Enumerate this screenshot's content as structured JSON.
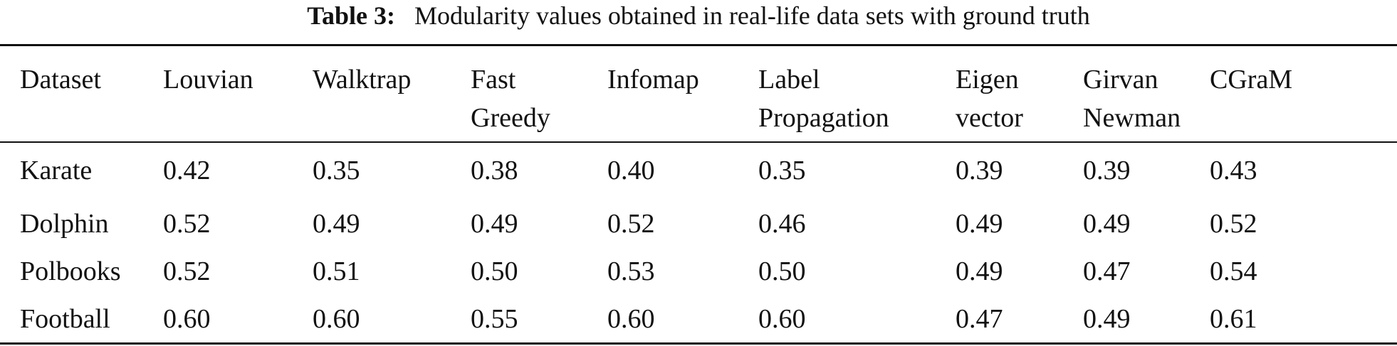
{
  "caption": {
    "label": "Table 3:",
    "text": "Modularity values obtained in real-life data sets with ground truth"
  },
  "table": {
    "columns": [
      [
        "Dataset"
      ],
      [
        "Louvian"
      ],
      [
        "Walktrap"
      ],
      [
        "Fast",
        "Greedy"
      ],
      [
        "Infomap"
      ],
      [
        "Label",
        "Propagation"
      ],
      [
        "Eigen",
        "vector"
      ],
      [
        "Girvan",
        "Newman"
      ],
      [
        "CGraM"
      ]
    ],
    "rows": [
      [
        "Karate",
        "0.42",
        "0.35",
        "0.38",
        "0.40",
        "0.35",
        "0.39",
        "0.39",
        "0.43"
      ],
      [
        "Dolphin",
        "0.52",
        "0.49",
        "0.49",
        "0.52",
        "0.46",
        "0.49",
        "0.49",
        "0.52"
      ],
      [
        "Polbooks",
        "0.52",
        "0.51",
        "0.50",
        "0.53",
        "0.50",
        "0.49",
        "0.47",
        "0.54"
      ],
      [
        "Football",
        "0.60",
        "0.60",
        "0.55",
        "0.60",
        "0.60",
        "0.47",
        "0.49",
        "0.61"
      ]
    ]
  }
}
